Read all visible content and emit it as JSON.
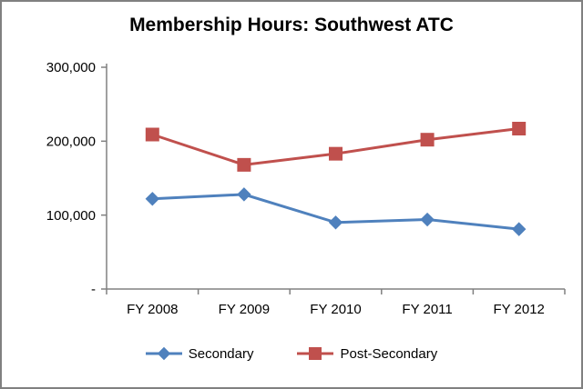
{
  "chart_data": {
    "type": "line",
    "title": "Membership Hours: Southwest ATC",
    "categories": [
      "FY 2008",
      "FY 2009",
      "FY 2010",
      "FY 2011",
      "FY 2012"
    ],
    "series": [
      {
        "name": "Secondary",
        "values": [
          122000,
          128000,
          90000,
          94000,
          81000
        ],
        "color": "#4F81BD",
        "marker": "diamond"
      },
      {
        "name": "Post-Secondary",
        "values": [
          209000,
          168000,
          183000,
          202000,
          217000
        ],
        "color": "#C0504D",
        "marker": "square"
      }
    ],
    "ylim": [
      0,
      300000
    ],
    "yticks": [
      {
        "value": 0,
        "label": "-"
      },
      {
        "value": 100000,
        "label": "100,000"
      },
      {
        "value": 200000,
        "label": "200,000"
      },
      {
        "value": 300000,
        "label": "300,000"
      }
    ],
    "xlabel": "",
    "ylabel": "",
    "grid": false,
    "legend_position": "bottom",
    "axis_color": "#808080"
  }
}
